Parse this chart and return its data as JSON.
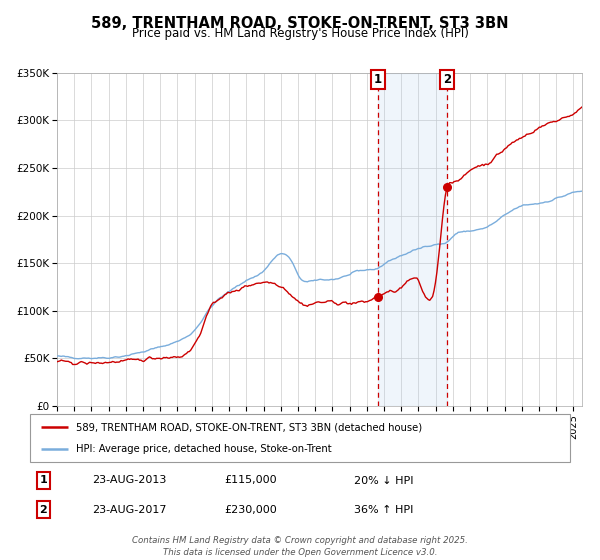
{
  "title": "589, TRENTHAM ROAD, STOKE-ON-TRENT, ST3 3BN",
  "subtitle": "Price paid vs. HM Land Registry's House Price Index (HPI)",
  "hpi_color": "#7aaddc",
  "price_color": "#cc0000",
  "background_color": "#ffffff",
  "grid_color": "#cccccc",
  "shade_color": "#ddeeff",
  "annotation1_date": 2013.65,
  "annotation2_date": 2017.65,
  "annotation1_price": 115000,
  "annotation2_price": 230000,
  "ylim_min": 0,
  "ylim_max": 350000,
  "xlim_min": 1995.0,
  "xlim_max": 2025.5,
  "legend_line1": "589, TRENTHAM ROAD, STOKE-ON-TRENT, ST3 3BN (detached house)",
  "legend_line2": "HPI: Average price, detached house, Stoke-on-Trent",
  "table_row1": [
    "1",
    "23-AUG-2013",
    "£115,000",
    "20% ↓ HPI"
  ],
  "table_row2": [
    "2",
    "23-AUG-2017",
    "£230,000",
    "36% ↑ HPI"
  ],
  "footer": "Contains HM Land Registry data © Crown copyright and database right 2025.\nThis data is licensed under the Open Government Licence v3.0.",
  "ylabel_ticks": [
    0,
    50000,
    100000,
    150000,
    200000,
    250000,
    300000,
    350000
  ],
  "ylabel_labels": [
    "£0",
    "£50K",
    "£100K",
    "£150K",
    "£200K",
    "£250K",
    "£300K",
    "£350K"
  ]
}
